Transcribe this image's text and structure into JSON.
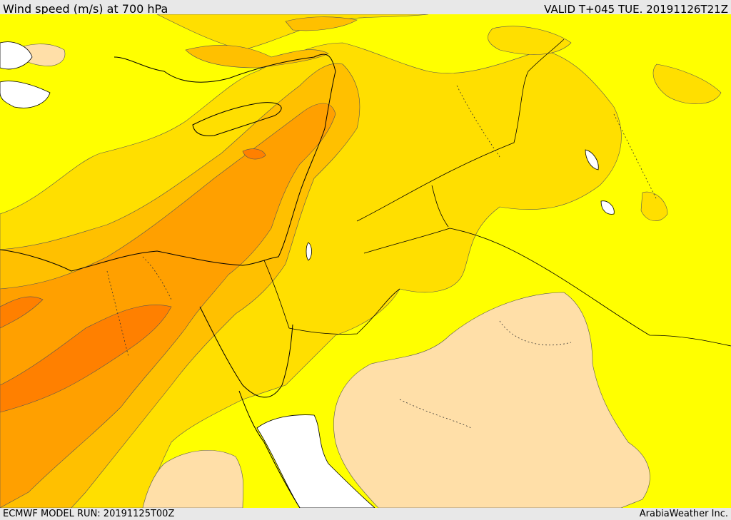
{
  "header": {
    "title": "Wind speed (m/s) at 700 hPa",
    "valid": "VALID T+045 TUE. 20191126T21Z"
  },
  "footer": {
    "model_run": "ECMWF MODEL RUN: 20191125T00Z",
    "brand": "ArabiaWeather Inc."
  },
  "map": {
    "colors": {
      "background_band": "#ffff00",
      "band_1": "#ffdf00",
      "band_2": "#ffc000",
      "band_3": "#ffa000",
      "band_4": "#ff8000",
      "low_wind": "#ffdfa8",
      "sea_mask": "#ffffff",
      "coastline": "#000000",
      "border": "#000000"
    }
  }
}
